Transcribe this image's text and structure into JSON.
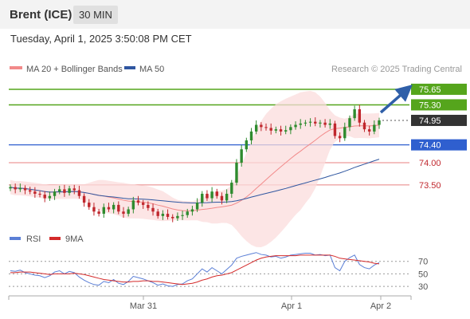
{
  "header": {
    "instrument": "Brent (ICE)",
    "timeframe": "30 MIN",
    "datetime": "Tuesday, April 1, 2025 3:50:08 PM CET"
  },
  "legend": {
    "ma20": "MA 20 + Bollinger Bands",
    "ma50": "MA 50",
    "credit": "Research © 2025 Trading Central",
    "rsi": "RSI",
    "ma9": "9MA"
  },
  "colors": {
    "ma20": "#f28a8a",
    "ma50": "#2f56a0",
    "resistance": "#55a51c",
    "pivot": "#2f5fcf",
    "support": "#e88080",
    "candle_up": "#2e8b2e",
    "candle_down": "#c0272d",
    "last_price_bg": "#333333"
  },
  "chart_data": [
    {
      "type": "candlestick",
      "title": "Brent (ICE)",
      "timeframe": "30 MIN",
      "x_ticks": [
        "Mar 31",
        "Apr 1",
        "Apr 2"
      ],
      "y_range": [
        72.6,
        75.9
      ],
      "levels": [
        {
          "value": 75.65,
          "label": "75.65",
          "kind": "resistance"
        },
        {
          "value": 75.3,
          "label": "75.30",
          "kind": "resistance"
        },
        {
          "value": 74.95,
          "label": "74.95",
          "kind": "last"
        },
        {
          "value": 74.4,
          "label": "74.40",
          "kind": "pivot"
        },
        {
          "value": 74.0,
          "label": "74.00",
          "kind": "support"
        },
        {
          "value": 73.5,
          "label": "73.50",
          "kind": "support"
        }
      ],
      "closes": [
        73.45,
        73.4,
        73.43,
        73.38,
        73.35,
        73.3,
        73.28,
        73.2,
        73.25,
        73.35,
        73.4,
        73.32,
        73.42,
        73.38,
        73.25,
        73.1,
        73.0,
        72.9,
        72.85,
        73.0,
        72.95,
        73.05,
        72.9,
        72.85,
        72.95,
        73.15,
        73.1,
        73.05,
        72.98,
        72.9,
        72.8,
        72.85,
        72.78,
        72.75,
        72.8,
        72.82,
        72.9,
        72.95,
        73.1,
        73.3,
        73.2,
        73.35,
        73.25,
        73.15,
        73.3,
        73.55,
        74.0,
        74.3,
        74.5,
        74.7,
        74.85,
        74.8,
        74.78,
        74.72,
        74.75,
        74.7,
        74.73,
        74.8,
        74.85,
        74.88,
        74.9,
        74.92,
        74.88,
        74.9,
        74.85,
        74.88,
        74.6,
        74.55,
        74.8,
        75.0,
        75.2,
        74.9,
        74.75,
        74.7,
        74.85,
        74.95
      ],
      "ma20_closes_window": 20,
      "ma50_closes_window": 50
    },
    {
      "type": "line",
      "title": "RSI",
      "series": [
        {
          "name": "RSI",
          "values": [
            55,
            54,
            56,
            52,
            50,
            48,
            47,
            44,
            47,
            53,
            55,
            50,
            54,
            52,
            45,
            40,
            36,
            33,
            32,
            38,
            36,
            41,
            35,
            33,
            38,
            46,
            44,
            42,
            39,
            36,
            32,
            34,
            31,
            30,
            33,
            34,
            39,
            42,
            50,
            58,
            53,
            60,
            55,
            50,
            57,
            64,
            75,
            78,
            80,
            82,
            84,
            81,
            80,
            77,
            78,
            75,
            77,
            80,
            81,
            82,
            83,
            83,
            80,
            81,
            79,
            80,
            60,
            55,
            70,
            76,
            80,
            65,
            60,
            58,
            64,
            68
          ]
        },
        {
          "name": "9MA",
          "values": [
            52,
            52,
            53,
            53,
            53,
            52,
            51,
            50,
            49,
            50,
            50,
            50,
            50,
            51,
            50,
            49,
            47,
            45,
            43,
            41,
            40,
            39,
            38,
            37,
            37,
            38,
            38,
            39,
            39,
            38,
            38,
            37,
            36,
            35,
            34,
            33,
            34,
            35,
            37,
            40,
            42,
            45,
            47,
            48,
            50,
            52,
            56,
            60,
            64,
            68,
            72,
            75,
            77,
            78,
            79,
            79,
            79,
            79,
            79,
            80,
            80,
            80,
            80,
            80,
            80,
            80,
            78,
            75,
            74,
            73,
            72,
            71,
            70,
            69,
            67,
            66
          ]
        }
      ],
      "y_ticks": [
        70,
        50,
        30
      ],
      "ylim": [
        20,
        90
      ]
    }
  ]
}
